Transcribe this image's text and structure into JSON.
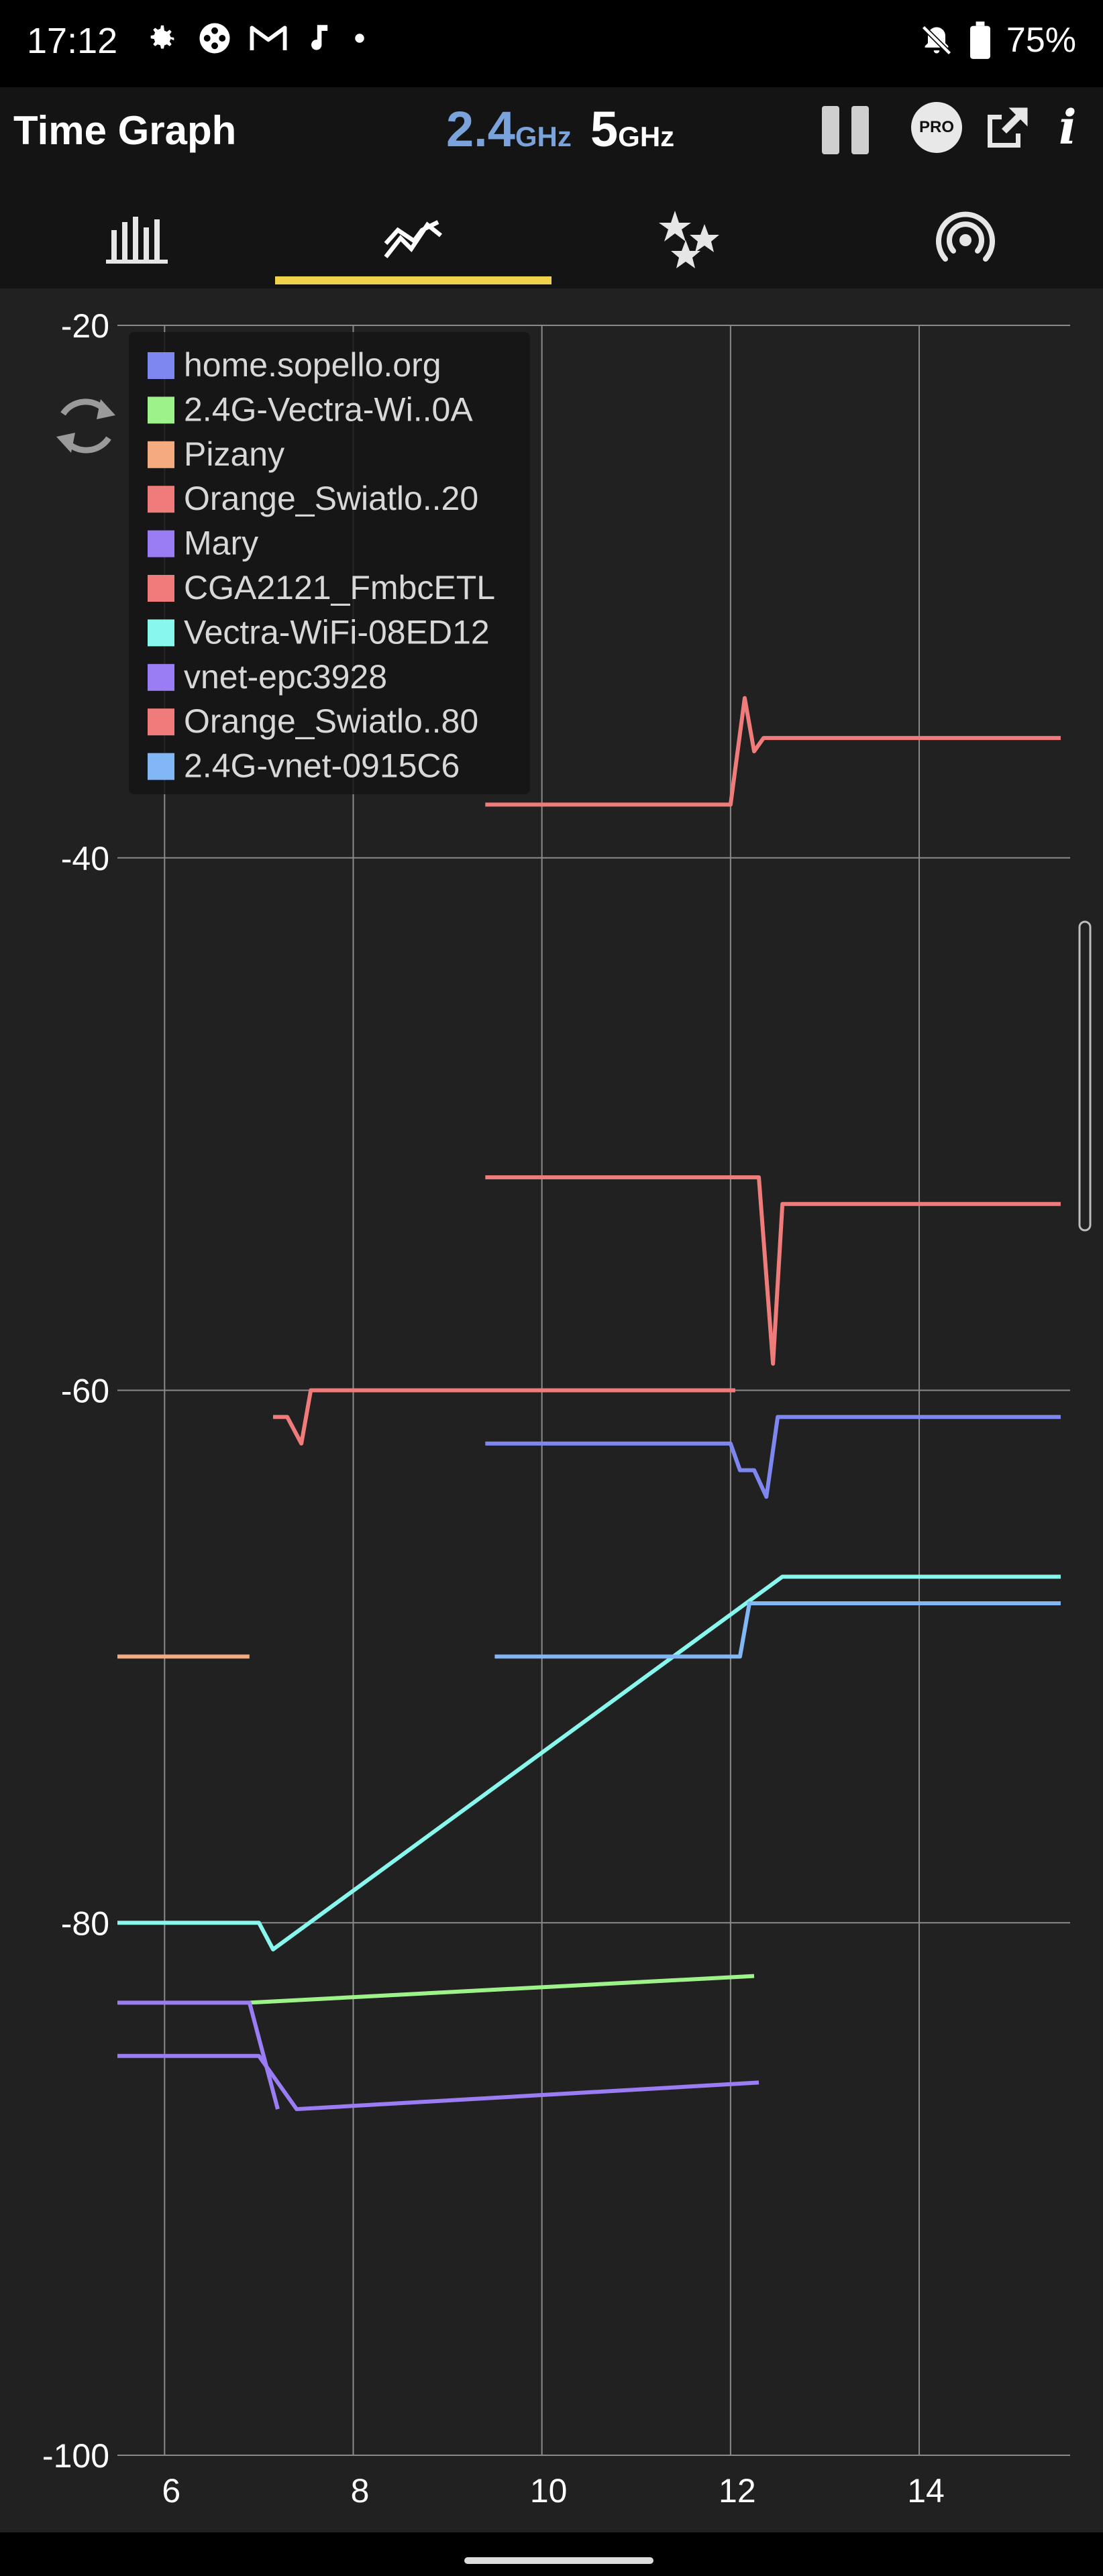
{
  "status_bar": {
    "time": "17:12",
    "icons": [
      "gear-icon",
      "gamepad-icon",
      "gmail-icon",
      "music-note-icon",
      "dot-icon"
    ],
    "right_icons": [
      "bell-off-icon",
      "battery-icon"
    ],
    "battery": "75%"
  },
  "appbar": {
    "title": "Time Graph",
    "band_24_value": "2.4",
    "band_24_unit": "GHz",
    "band_5_value": "5",
    "band_5_unit": "GHz",
    "pro_label": "PRO",
    "info_label": "i"
  },
  "tabs": [
    {
      "name": "channel-graph",
      "icon": "bar-chart-icon",
      "selected": false
    },
    {
      "name": "time-graph",
      "icon": "line-chart-icon",
      "selected": true
    },
    {
      "name": "channel-rating",
      "icon": "stars-icon",
      "selected": false
    },
    {
      "name": "ap-list",
      "icon": "wifi-signal-icon",
      "selected": false
    }
  ],
  "colors": {
    "accent": "#f1d24b",
    "band_24": "#7aa2db",
    "background": "#212121",
    "grid": "#8a8a8a"
  },
  "chart_data": {
    "type": "line",
    "xlim": [
      5.5,
      15.6
    ],
    "ylim": [
      -100,
      -20
    ],
    "x_ticks": [
      6,
      8,
      10,
      12,
      14
    ],
    "y_ticks": [
      -20,
      -40,
      -60,
      -80,
      -100
    ],
    "grid": true,
    "legend_position": "top-left",
    "series": [
      {
        "name": "home.sopello.org",
        "color": "#7e86f0",
        "points": [
          [
            9.4,
            -62
          ],
          [
            12.0,
            -62
          ],
          [
            12.1,
            -63
          ],
          [
            12.25,
            -63
          ],
          [
            12.38,
            -64
          ],
          [
            12.5,
            -61
          ],
          [
            15.5,
            -61
          ]
        ]
      },
      {
        "name": "2.4G-Vectra-Wi..0A",
        "color": "#9ef28a",
        "points": [
          [
            6.9,
            -83
          ],
          [
            12.25,
            -82
          ]
        ]
      },
      {
        "name": "Pizany",
        "color": "#f5ab80",
        "points": [
          [
            5.5,
            -70
          ],
          [
            6.9,
            -70
          ]
        ]
      },
      {
        "name": "Orange_Swiatlo..20",
        "color": "#ef7b7b",
        "points": [
          [
            7.15,
            -61
          ],
          [
            7.3,
            -61
          ],
          [
            7.45,
            -62
          ],
          [
            7.55,
            -60
          ],
          [
            12.05,
            -60
          ]
        ]
      },
      {
        "name": "Mary",
        "color": "#9a7cf4",
        "points": [
          [
            5.5,
            -83
          ],
          [
            6.9,
            -83
          ],
          [
            7.2,
            -87
          ]
        ]
      },
      {
        "name": "CGA2121_FmbcETL",
        "color": "#ef7b7b",
        "points": [
          [
            9.4,
            -38
          ],
          [
            12.0,
            -38
          ],
          [
            12.15,
            -34
          ],
          [
            12.25,
            -36
          ],
          [
            12.35,
            -35.5
          ],
          [
            15.5,
            -35.5
          ]
        ]
      },
      {
        "name": "Vectra-WiFi-08ED12",
        "color": "#88f7ed",
        "points": [
          [
            5.5,
            -80
          ],
          [
            7.0,
            -80
          ],
          [
            7.15,
            -81
          ],
          [
            12.55,
            -67
          ],
          [
            15.5,
            -67
          ]
        ]
      },
      {
        "name": "vnet-epc3928",
        "color": "#9a7cf4",
        "points": [
          [
            5.5,
            -85
          ],
          [
            7.0,
            -85
          ],
          [
            7.4,
            -87
          ],
          [
            12.3,
            -86
          ]
        ]
      },
      {
        "name": "Orange_Swiatlo..80",
        "color": "#ef7b7b",
        "points": [
          [
            9.4,
            -52
          ],
          [
            12.3,
            -52
          ],
          [
            12.45,
            -59
          ],
          [
            12.55,
            -53
          ],
          [
            15.5,
            -53
          ]
        ]
      },
      {
        "name": "2.4G-vnet-0915C6",
        "color": "#82b7f5",
        "points": [
          [
            9.5,
            -70
          ],
          [
            12.1,
            -70
          ],
          [
            12.2,
            -68
          ],
          [
            15.5,
            -68
          ]
        ]
      }
    ]
  }
}
